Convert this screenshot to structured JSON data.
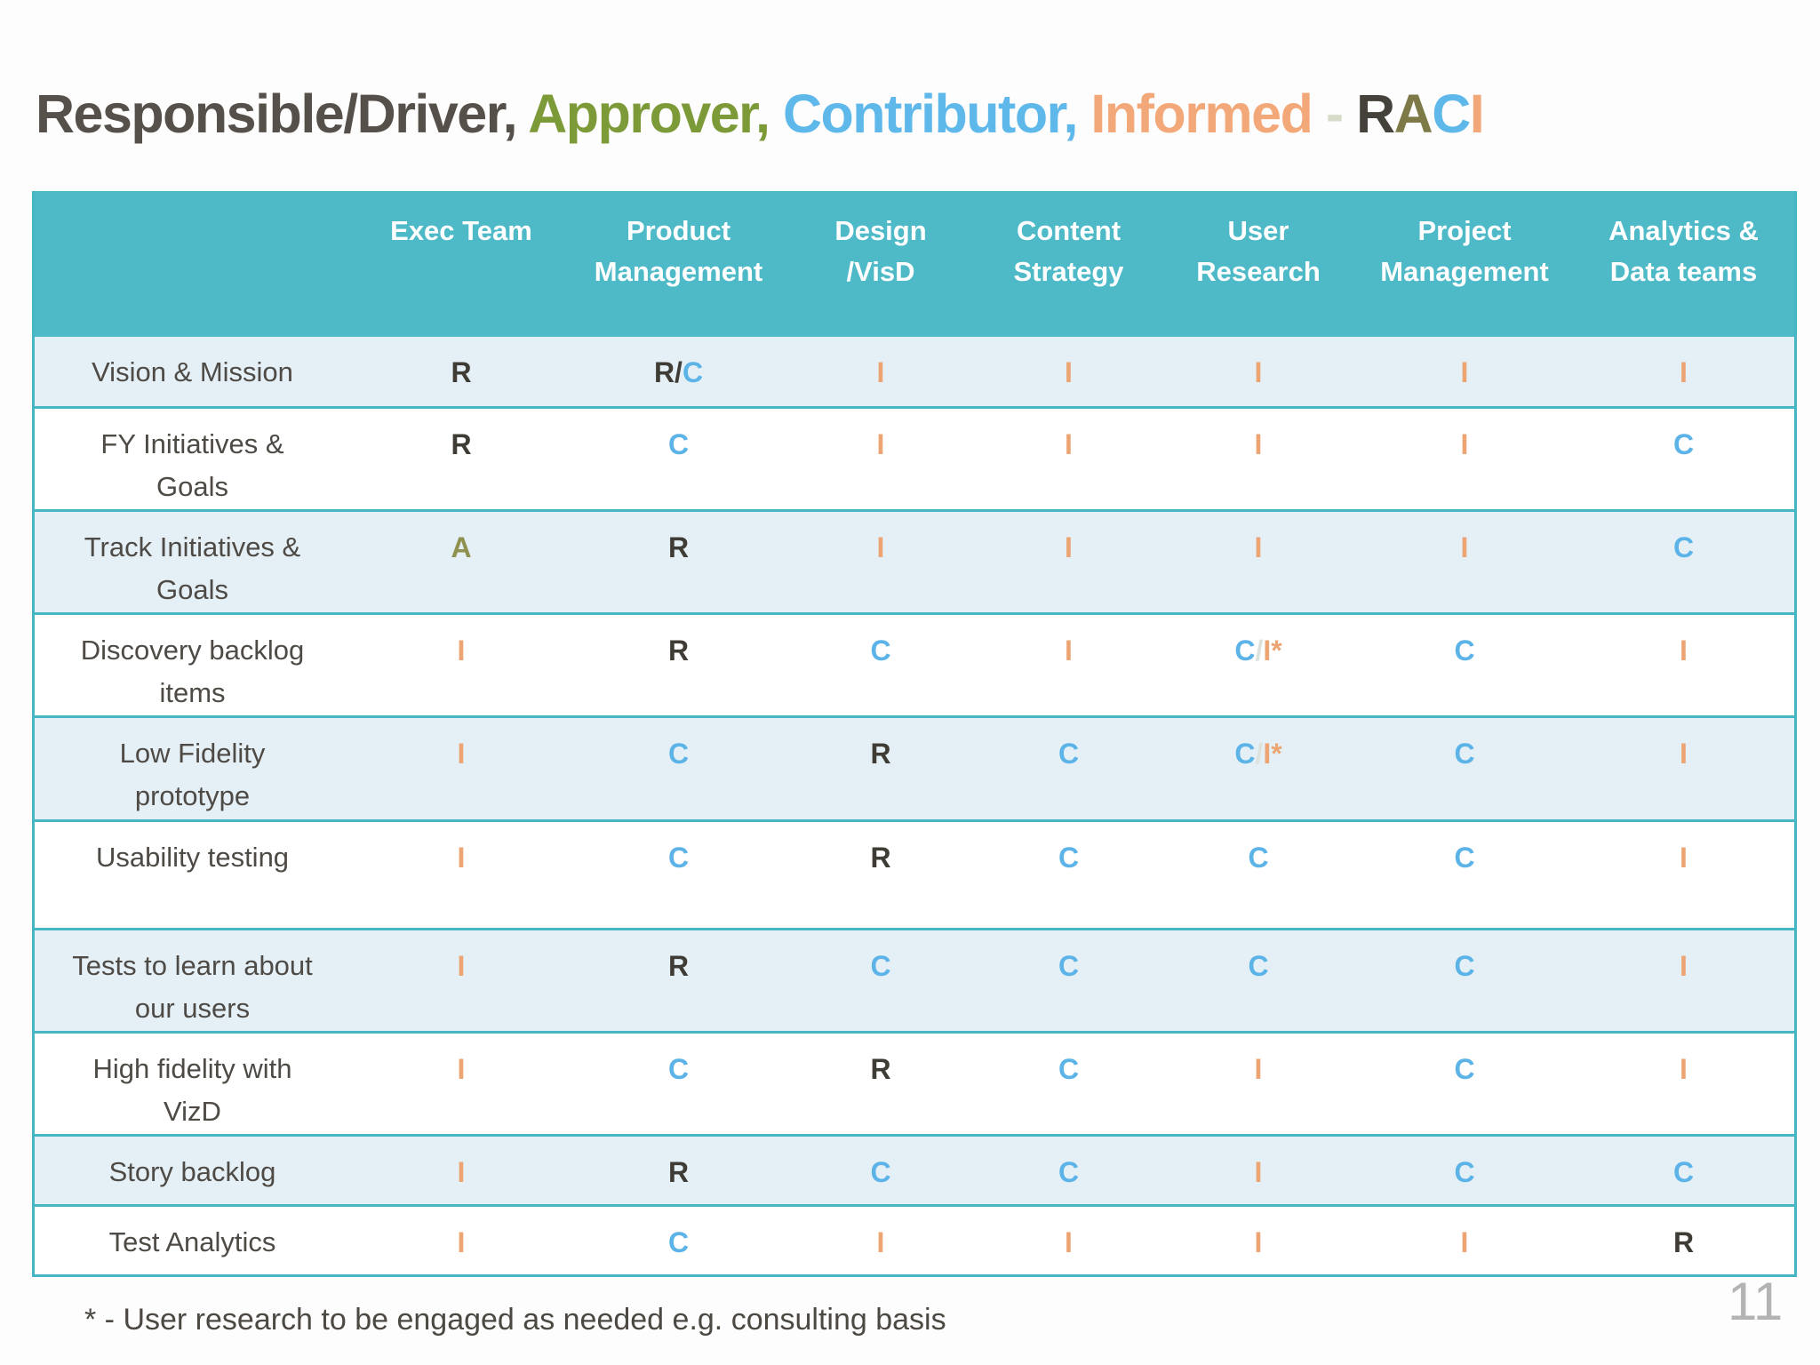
{
  "title": {
    "segments": [
      {
        "id": "responsible-driver",
        "text": "Responsible/Driver, ",
        "color": "#55504a"
      },
      {
        "id": "approver",
        "text": "Approver, ",
        "color": "#7d9a38"
      },
      {
        "id": "contributor",
        "text": "Contributor, ",
        "color": "#5fb8ea"
      },
      {
        "id": "informed",
        "text": "Informed ",
        "color": "#f2a878"
      },
      {
        "id": "dash",
        "text": "- ",
        "color": "#d6dcc9"
      },
      {
        "id": "raci-r",
        "text": "R",
        "color": "#45413b"
      },
      {
        "id": "raci-a",
        "text": "A",
        "color": "#7d7a48"
      },
      {
        "id": "raci-c",
        "text": "C",
        "color": "#5fb8ea"
      },
      {
        "id": "raci-i",
        "text": "I",
        "color": "#f2a878"
      }
    ]
  },
  "table": {
    "header_bg": "#4ebac8",
    "border_color": "#46b6c5",
    "shaded_row_bg": "#e5f0f6",
    "columns": [
      {
        "id": "activity",
        "lines": [
          ""
        ]
      },
      {
        "id": "exec-team",
        "lines": [
          "Exec Team"
        ]
      },
      {
        "id": "product-management",
        "lines": [
          "Product",
          "Management"
        ]
      },
      {
        "id": "design-visd",
        "lines": [
          "Design",
          "/VisD"
        ]
      },
      {
        "id": "content-strategy",
        "lines": [
          "Content",
          "Strategy"
        ]
      },
      {
        "id": "user-research",
        "lines": [
          "User",
          "Research"
        ]
      },
      {
        "id": "project-management",
        "lines": [
          "Project",
          "Management"
        ]
      },
      {
        "id": "analytics-data-teams",
        "lines": [
          "Analytics &",
          "Data teams"
        ]
      }
    ],
    "rows": [
      {
        "label_lines": [
          "Vision & Mission"
        ],
        "shaded": true,
        "cells": [
          "R",
          "R/C",
          "I",
          "I",
          "I",
          "I",
          "I"
        ]
      },
      {
        "label_lines": [
          "FY Initiatives &",
          "Goals"
        ],
        "shaded": false,
        "cells": [
          "R",
          "C",
          "I",
          "I",
          "I",
          "I",
          "C"
        ]
      },
      {
        "label_lines": [
          "Track Initiatives &",
          "Goals"
        ],
        "shaded": true,
        "cells": [
          "A",
          "R",
          "I",
          "I",
          "I",
          "I",
          "C"
        ]
      },
      {
        "label_lines": [
          "Discovery backlog",
          "items"
        ],
        "shaded": false,
        "cells": [
          "I",
          "R",
          "C",
          "I",
          "C/I*",
          "C",
          "I"
        ]
      },
      {
        "label_lines": [
          "Low Fidelity",
          "prototype"
        ],
        "shaded": true,
        "cells": [
          "I",
          "C",
          "R",
          "C",
          "C/I*",
          "C",
          "I"
        ]
      },
      {
        "label_lines": [
          "Usability testing"
        ],
        "shaded": false,
        "cells": [
          "I",
          "C",
          "R",
          "C",
          "C",
          "C",
          "I"
        ]
      },
      {
        "label_lines": [
          "Tests to learn about",
          "our users"
        ],
        "shaded": true,
        "cells": [
          "I",
          "R",
          "C",
          "C",
          "C",
          "C",
          "I"
        ]
      },
      {
        "label_lines": [
          "High fidelity with",
          "VizD"
        ],
        "shaded": false,
        "cells": [
          "I",
          "C",
          "R",
          "C",
          "I",
          "C",
          "I"
        ]
      },
      {
        "label_lines": [
          "Story backlog"
        ],
        "shaded": true,
        "cells": [
          "I",
          "R",
          "C",
          "C",
          "I",
          "C",
          "C"
        ]
      },
      {
        "label_lines": [
          "Test Analytics"
        ],
        "shaded": false,
        "cells": [
          "I",
          "C",
          "I",
          "I",
          "I",
          "I",
          "R"
        ]
      }
    ]
  },
  "letter_colors": {
    "R": "#3f3b35",
    "A": "#8e9150",
    "C": "#5cb3e8",
    "I": "#eca572",
    "asterisk": "#eca572",
    "slash_dark": "#3f3b35",
    "slash_light": "#dde3dc"
  },
  "footnote": "* - User research to be engaged as needed e.g. consulting basis",
  "page_number": "11"
}
